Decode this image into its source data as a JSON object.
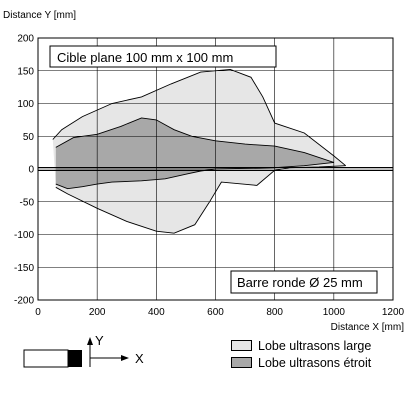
{
  "chart_data": {
    "type": "area",
    "ylabel": "Distance Y [mm]",
    "xlabel": "Distance X [mm]",
    "xlim": [
      0,
      1200
    ],
    "ylim": [
      -200,
      200
    ],
    "x_ticks": [
      0,
      200,
      400,
      600,
      800,
      1000,
      1200
    ],
    "y_ticks": [
      200,
      150,
      100,
      50,
      0,
      -50,
      -100,
      -150,
      -200
    ],
    "grid": true,
    "annotations": {
      "top": "Cible plane 100 mm x 100 mm",
      "bottom": "Barre ronde Ø 25 mm"
    },
    "series": [
      {
        "name": "Lobe ultrasons large",
        "color": "#e6e6e6",
        "upper": [
          [
            50,
            45
          ],
          [
            80,
            60
          ],
          [
            150,
            80
          ],
          [
            250,
            100
          ],
          [
            350,
            110
          ],
          [
            450,
            130
          ],
          [
            550,
            148
          ],
          [
            650,
            152
          ],
          [
            720,
            140
          ],
          [
            760,
            110
          ],
          [
            800,
            70
          ],
          [
            900,
            55
          ],
          [
            1000,
            20
          ],
          [
            1040,
            5
          ]
        ],
        "lower": [
          [
            1040,
            5
          ],
          [
            950,
            3
          ],
          [
            850,
            2
          ],
          [
            800,
            -2
          ],
          [
            740,
            -25
          ],
          [
            620,
            -20
          ],
          [
            580,
            -50
          ],
          [
            530,
            -85
          ],
          [
            460,
            -98
          ],
          [
            400,
            -95
          ],
          [
            300,
            -80
          ],
          [
            200,
            -60
          ],
          [
            100,
            -38
          ],
          [
            60,
            -28
          ]
        ]
      },
      {
        "name": "Lobe ultrasons étroit",
        "color": "#a8a8a8",
        "upper": [
          [
            60,
            33
          ],
          [
            120,
            48
          ],
          [
            200,
            53
          ],
          [
            280,
            65
          ],
          [
            350,
            78
          ],
          [
            400,
            75
          ],
          [
            460,
            60
          ],
          [
            520,
            50
          ],
          [
            600,
            43
          ],
          [
            700,
            38
          ],
          [
            800,
            35
          ],
          [
            900,
            25
          ],
          [
            1000,
            10
          ]
        ],
        "lower": [
          [
            1000,
            10
          ],
          [
            900,
            5
          ],
          [
            800,
            2
          ],
          [
            700,
            1
          ],
          [
            600,
            0
          ],
          [
            550,
            -3
          ],
          [
            500,
            -8
          ],
          [
            430,
            -15
          ],
          [
            350,
            -18
          ],
          [
            250,
            -20
          ],
          [
            200,
            -23
          ],
          [
            150,
            -27
          ],
          [
            100,
            -30
          ],
          [
            60,
            -23
          ]
        ]
      }
    ],
    "axis_diagram": {
      "x_label": "X",
      "y_label": "Y"
    }
  }
}
